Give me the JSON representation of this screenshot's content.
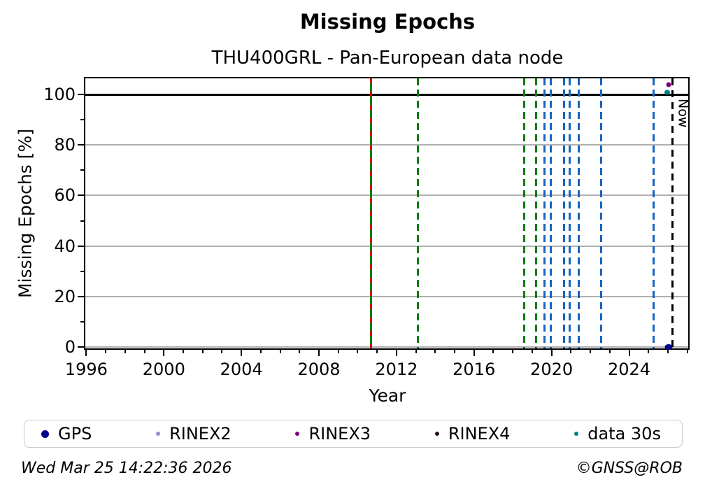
{
  "header": {
    "title": "Missing Epochs",
    "subtitle": "THU400GRL - Pan-European data node"
  },
  "chart_data": {
    "type": "scatter",
    "title": "Missing Epochs",
    "subtitle": "THU400GRL - Pan-European data node",
    "xlabel": "Year",
    "ylabel": "Missing Epochs [%]",
    "xlim": [
      1995.95,
      2027.05
    ],
    "ylim": [
      -0.6,
      106.4
    ],
    "xticks_major": [
      1996,
      2000,
      2004,
      2008,
      2012,
      2016,
      2020,
      2024
    ],
    "xticks_minor_start": 1997,
    "xticks_minor_end": 2027,
    "yticks_major": [
      0,
      20,
      40,
      60,
      80,
      100
    ],
    "yticks_minor": [
      10,
      30,
      50,
      70,
      90
    ],
    "grid_horizontal_at": [
      0,
      20,
      40,
      60,
      80
    ],
    "gridline_color": "#b0b0b0",
    "hline": {
      "y": 100,
      "color": "#000000",
      "style": "solid"
    },
    "vlines": [
      {
        "year": 2010.7,
        "color": "#0a7d0a",
        "style": "solid-with-red-dashes",
        "overlay_color": "#d40000"
      },
      {
        "year": 2013.1,
        "color": "#0a7d0a",
        "style": "dashed"
      },
      {
        "year": 2018.6,
        "color": "#0a7d0a",
        "style": "dashed"
      },
      {
        "year": 2019.2,
        "color": "#0a7d0a",
        "style": "dashed"
      },
      {
        "year": 2019.65,
        "color": "#1565c0",
        "style": "dashed"
      },
      {
        "year": 2019.95,
        "color": "#1565c0",
        "style": "dashed"
      },
      {
        "year": 2020.65,
        "color": "#1565c0",
        "style": "dashed"
      },
      {
        "year": 2020.95,
        "color": "#1565c0",
        "style": "dashed"
      },
      {
        "year": 2021.4,
        "color": "#1565c0",
        "style": "dashed"
      },
      {
        "year": 2022.55,
        "color": "#1565c0",
        "style": "dashed"
      },
      {
        "year": 2025.25,
        "color": "#1565c0",
        "style": "dashed"
      }
    ],
    "now_line": {
      "year": 2026.23,
      "label": "Now",
      "color": "#000000",
      "style": "dashed"
    },
    "points": [
      {
        "series": "GPS",
        "year": 2026.02,
        "value": 0,
        "color": "#00008b",
        "w": 11,
        "h": 8
      },
      {
        "series": "RINEX3",
        "year": 2026.05,
        "value": 104,
        "color": "#800080",
        "w": 7,
        "h": 7
      },
      {
        "series": "data 30s",
        "year": 2025.97,
        "value": 101,
        "color": "#008080",
        "w": 8,
        "h": 7
      }
    ],
    "legend": [
      {
        "label": "GPS",
        "color": "#00008b",
        "size": 11
      },
      {
        "label": "RINEX2",
        "color": "#9691cc",
        "size": 6
      },
      {
        "label": "RINEX3",
        "color": "#800080",
        "size": 6
      },
      {
        "label": "RINEX4",
        "color": "#2a0e28",
        "size": 6
      },
      {
        "label": "data 30s",
        "color": "#008080",
        "size": 6
      }
    ],
    "legend_position": "bottom"
  },
  "footer": {
    "timestamp": "Wed Mar 25 14:22:36 2026",
    "credit": "©GNSS@ROB"
  }
}
